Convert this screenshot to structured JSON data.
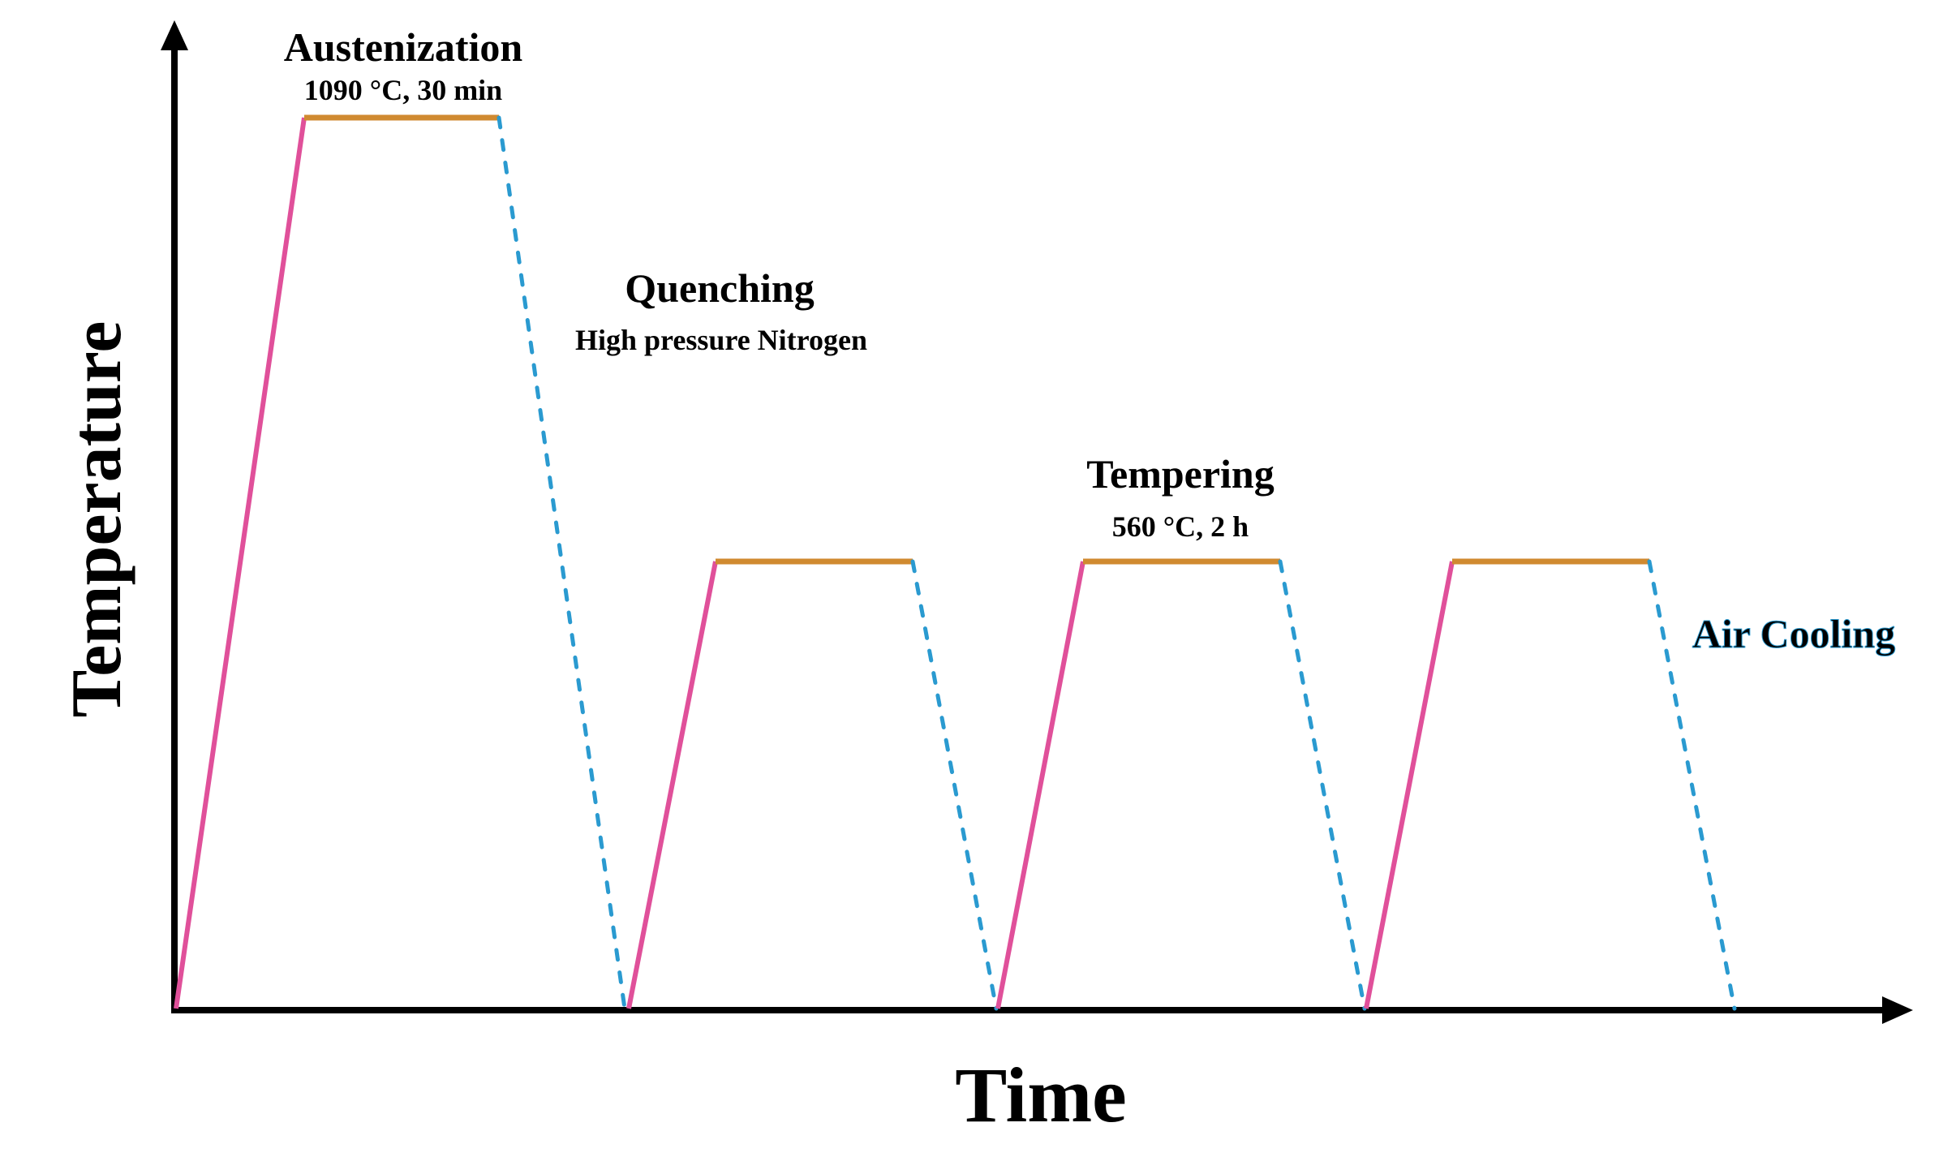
{
  "diagram": {
    "title_axis_x": "Time",
    "title_axis_y": "Temperature",
    "stages": {
      "austenization": {
        "title": "Austenization",
        "detail": "1090 °C, 30 min"
      },
      "quenching": {
        "title": "Quenching",
        "detail": "High pressure Nitrogen"
      },
      "tempering": {
        "title": "Tempering",
        "detail": "560 °C, 2 h"
      },
      "air_cooling": {
        "title": "Air Cooling"
      }
    },
    "colors": {
      "heating": "#e0509a",
      "holding": "#d08a30",
      "cooling": "#2a9ad0",
      "axis": "#000000"
    }
  }
}
